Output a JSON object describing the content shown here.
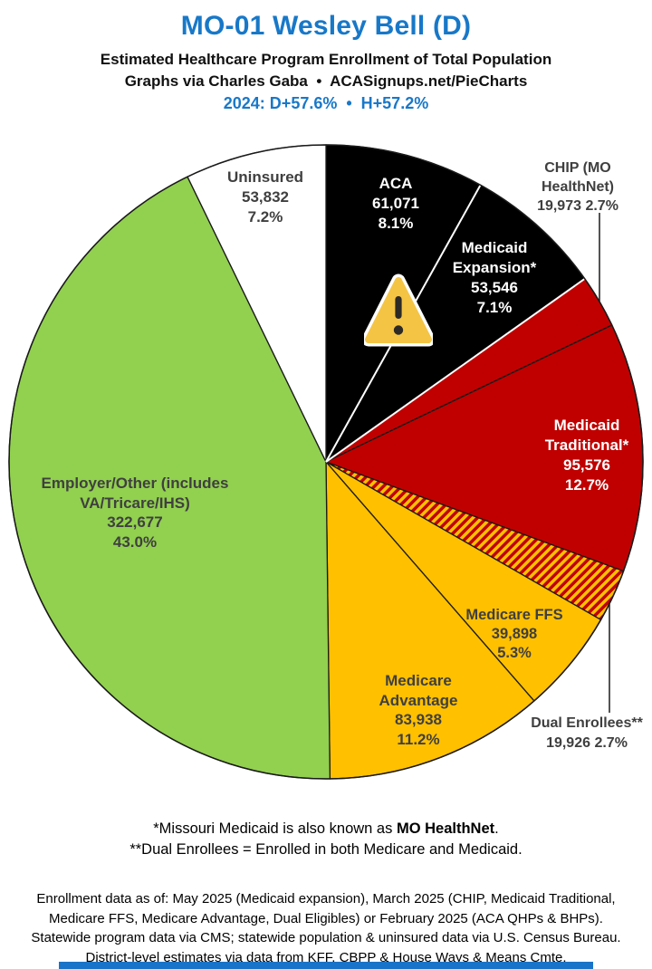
{
  "header": {
    "title": "MO-01 Wesley Bell (D)",
    "subtitle": "Estimated Healthcare Program Enrollment of Total Population",
    "credit": "Graphs via Charles Gaba  •  ACASignups.net/PieCharts",
    "partisan_lean": "2024: D+57.6%  •  H+57.2%"
  },
  "colors": {
    "title_blue": "#1878C8",
    "banner_blue": "#1973C8",
    "black_slice": "#000000",
    "red_slice": "#C00000",
    "gold_slice": "#FFC000",
    "green_slice": "#92D050",
    "white_slice": "#FFFFFF",
    "dark_label_gray": "#3F3F3F",
    "outline_black": "#1a1a1a",
    "warning_gold": "#F4C445"
  },
  "annotations": {
    "warning_icon": "warning-triangle-icon"
  },
  "chart_data": {
    "type": "pie",
    "title": "Estimated Healthcare Program Enrollment of Total Population",
    "start_angle": "12 o'clock",
    "direction": "clockwise",
    "legend_position": "none (direct slice labels)",
    "hatch": {
      "base": "#FFC000",
      "stripe": "#C00000",
      "angle_deg": 45
    },
    "slices": [
      {
        "id": "aca",
        "label": "ACA",
        "value": 61071,
        "value_text": "61,071",
        "pct": 8.1,
        "pct_text": "8.1%",
        "color": "#000000",
        "text_color": "#ffffff"
      },
      {
        "id": "medicaid-expansion",
        "label": "Medicaid Expansion*",
        "value": 53546,
        "value_text": "53,546",
        "pct": 7.1,
        "pct_text": "7.1%",
        "color": "#000000",
        "text_color": "#ffffff"
      },
      {
        "id": "chip",
        "label": "CHIP (MO HealthNet)",
        "value": 19973,
        "value_text": "19,973",
        "pct": 2.7,
        "pct_text": "2.7%",
        "color": "#C00000",
        "text_color": "#3f3f3f",
        "label_outside": true
      },
      {
        "id": "medicaid-traditional",
        "label": "Medicaid Traditional*",
        "value": 95576,
        "value_text": "95,576",
        "pct": 12.7,
        "pct_text": "12.7%",
        "color": "#C00000",
        "text_color": "#ffffff"
      },
      {
        "id": "dual-enrollees",
        "label": "Dual Enrollees**",
        "value": 19926,
        "value_text": "19,926",
        "pct": 2.7,
        "pct_text": "2.7%",
        "color": "hatch",
        "hatch": true,
        "text_color": "#3f3f3f",
        "label_outside": true
      },
      {
        "id": "medicare-ffs",
        "label": "Medicare FFS",
        "value": 39898,
        "value_text": "39,898",
        "pct": 5.3,
        "pct_text": "5.3%",
        "color": "#FFC000",
        "text_color": "#3f3f3f"
      },
      {
        "id": "medicare-advantage",
        "label": "Medicare Advantage",
        "value": 83938,
        "value_text": "83,938",
        "pct": 11.2,
        "pct_text": "11.2%",
        "color": "#FFC000",
        "text_color": "#3f3f3f"
      },
      {
        "id": "employer-other",
        "label": "Employer/Other (includes VA/Tricare/IHS)",
        "value": 322677,
        "value_text": "322,677",
        "pct": 43.0,
        "pct_text": "43.0%",
        "color": "#92D050",
        "text_color": "#3f3f3f"
      },
      {
        "id": "uninsured",
        "label": "Uninsured",
        "value": 53832,
        "value_text": "53,832",
        "pct": 7.2,
        "pct_text": "7.2%",
        "color": "#FFFFFF",
        "text_color": "#3f3f3f"
      }
    ]
  },
  "footnotes": {
    "line1_pre": "*Missouri Medicaid is also known as ",
    "line1_bold": "MO HealthNet",
    "line1_post": ".",
    "line2": "**Dual Enrollees = Enrolled in both Medicare and Medicaid."
  },
  "source_note": {
    "lines": [
      "Enrollment data as of: May 2025 (Medicaid expansion), March 2025 (CHIP, Medicaid Traditional,",
      "Medicare FFS, Medicare Advantage, Dual Eligibles) or February 2025 (ACA QHPs & BHPs).",
      "Statewide program data via CMS; statewide population & uninsured data via U.S. Census Bureau.",
      "District-level estimates via data from KFF, CBPP & House Ways & Means Cmte."
    ]
  }
}
